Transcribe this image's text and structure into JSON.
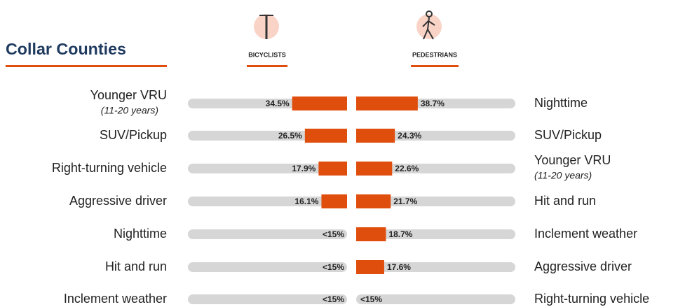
{
  "chart_data": {
    "type": "butterfly",
    "title": "Collar Counties",
    "xlim": [
      0,
      100
    ],
    "series": [
      {
        "name": "BICYCLISTS",
        "color": "#e04e0e",
        "categories": [
          "Younger VRU",
          "SUV/Pickup",
          "Right-turning vehicle",
          "Aggressive driver",
          "Nighttime",
          "Hit and run",
          "Inclement weather"
        ],
        "notes": [
          "(11-20 years)",
          null,
          null,
          null,
          null,
          null,
          null
        ],
        "values": [
          34.5,
          26.5,
          17.9,
          16.1,
          null,
          null,
          null
        ],
        "value_labels": [
          "34.5%",
          "26.5%",
          "17.9%",
          "16.1%",
          "<15%",
          "<15%",
          "<15%"
        ]
      },
      {
        "name": "PEDESTRIANS",
        "color": "#e04e0e",
        "categories": [
          "Nighttime",
          "SUV/Pickup",
          "Younger VRU",
          "Hit and run",
          "Inclement weather",
          "Aggressive driver",
          "Right-turning vehicle"
        ],
        "notes": [
          null,
          null,
          "(11-20 years)",
          null,
          null,
          null,
          null
        ],
        "values": [
          38.7,
          24.3,
          22.6,
          21.7,
          18.7,
          17.6,
          null
        ],
        "value_labels": [
          "38.7%",
          "24.3%",
          "22.6%",
          "21.7%",
          "18.7%",
          "17.6%",
          "<15%"
        ]
      }
    ]
  }
}
